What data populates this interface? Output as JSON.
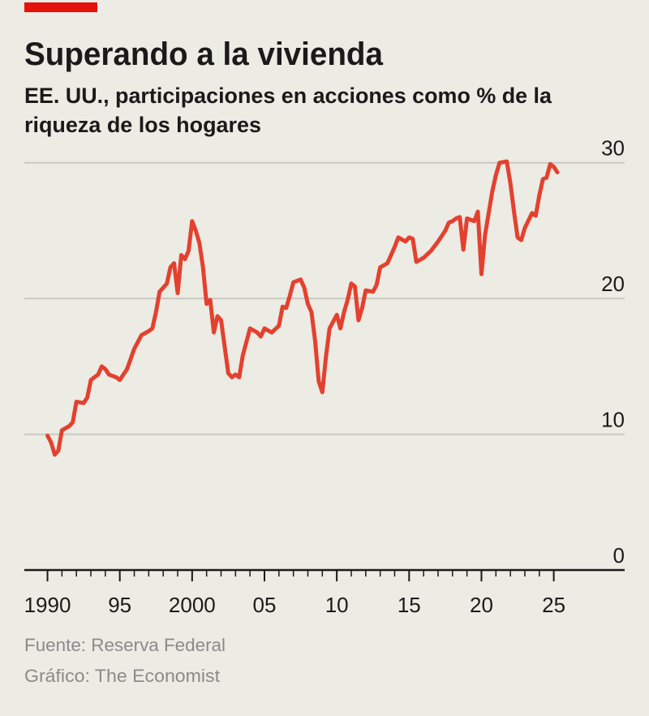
{
  "chart_data": {
    "type": "line",
    "title": "Superando a la vivienda",
    "subtitle": [
      "EE. UU., participaciones en acciones como % de la",
      "riqueza de los hogares"
    ],
    "source": "Fuente: Reserva Federal",
    "credit": "Gráfico: The Economist",
    "color": "#e3412f",
    "grid": true,
    "ylim": [
      0,
      31
    ],
    "yticks": [
      0,
      10,
      20,
      30
    ],
    "xlim": [
      1988.4,
      2029.9
    ],
    "xticks": [
      1990,
      {
        "value": 1995,
        "label": "95"
      },
      2000,
      {
        "value": 2005,
        "label": "05"
      },
      {
        "value": 2010,
        "label": "10"
      },
      {
        "value": 2015,
        "label": "15"
      },
      {
        "value": 2020,
        "label": "20"
      },
      {
        "value": 2025,
        "label": "25"
      }
    ],
    "xminorticks": [
      1990,
      1991,
      1992,
      1993,
      1994,
      1995,
      1996,
      1997,
      1998,
      1999,
      2000,
      2001,
      2002,
      2003,
      2004,
      2005,
      2006,
      2007,
      2008,
      2009,
      2010,
      2011,
      2012,
      2013,
      2014,
      2015,
      2016,
      2017,
      2018,
      2019,
      2020,
      2021,
      2022,
      2023,
      2024,
      2025
    ],
    "x": [
      1990.0,
      1990.25,
      1990.5,
      1990.75,
      1991.0,
      1991.5,
      1991.75,
      1992.0,
      1992.5,
      1992.75,
      1993.0,
      1993.5,
      1993.75,
      1994.0,
      1994.25,
      1994.75,
      1995.0,
      1995.5,
      1996.0,
      1996.5,
      1997.0,
      1997.25,
      1997.5,
      1997.75,
      1998.25,
      1998.5,
      1998.75,
      1999.0,
      1999.25,
      1999.5,
      1999.75,
      2000.0,
      2000.25,
      2000.5,
      2000.75,
      2001.0,
      2001.25,
      2001.5,
      2001.75,
      2002.0,
      2002.5,
      2002.75,
      2003.0,
      2003.25,
      2003.5,
      2004.0,
      2004.5,
      2004.75,
      2005.0,
      2005.5,
      2006.0,
      2006.25,
      2006.5,
      2006.75,
      2007.0,
      2007.5,
      2007.75,
      2008.0,
      2008.25,
      2008.5,
      2008.75,
      2009.0,
      2009.25,
      2009.5,
      2010.0,
      2010.25,
      2010.5,
      2010.75,
      2011.0,
      2011.25,
      2011.5,
      2011.75,
      2012.0,
      2012.5,
      2012.75,
      2013.0,
      2013.5,
      2014.0,
      2014.25,
      2014.75,
      2015.0,
      2015.25,
      2015.5,
      2016.0,
      2016.5,
      2017.0,
      2017.5,
      2017.75,
      2018.0,
      2018.25,
      2018.5,
      2018.75,
      2019.0,
      2019.5,
      2019.75,
      2020.0,
      2020.25,
      2020.5,
      2020.75,
      2021.0,
      2021.25,
      2021.75,
      2022.0,
      2022.25,
      2022.5,
      2022.75,
      2023.0,
      2023.5,
      2023.75,
      2024.0,
      2024.25,
      2024.5,
      2024.75,
      2025.0,
      2025.25
    ],
    "values": [
      9.9,
      9.4,
      8.5,
      8.8,
      10.3,
      10.6,
      10.9,
      12.4,
      12.3,
      12.7,
      14.0,
      14.4,
      15.0,
      14.8,
      14.4,
      14.2,
      14.0,
      14.8,
      16.3,
      17.3,
      17.6,
      17.8,
      19.0,
      20.5,
      21.1,
      22.3,
      22.6,
      20.4,
      23.2,
      22.9,
      23.5,
      25.7,
      25.0,
      24.1,
      22.3,
      19.6,
      19.9,
      17.5,
      18.7,
      18.4,
      14.5,
      14.2,
      14.4,
      14.2,
      15.8,
      17.8,
      17.5,
      17.2,
      17.8,
      17.5,
      18.0,
      19.4,
      19.3,
      20.2,
      21.2,
      21.4,
      20.8,
      19.6,
      19.0,
      16.9,
      13.9,
      13.1,
      15.7,
      17.8,
      18.8,
      17.8,
      19.0,
      19.9,
      21.1,
      20.9,
      18.4,
      19.3,
      20.6,
      20.5,
      21.0,
      22.3,
      22.6,
      23.8,
      24.5,
      24.2,
      24.5,
      24.4,
      22.7,
      23.0,
      23.5,
      24.2,
      25.0,
      25.6,
      25.7,
      25.9,
      26.0,
      23.6,
      25.9,
      25.7,
      26.4,
      21.8,
      24.7,
      26.3,
      27.9,
      29.1,
      30.0,
      30.1,
      28.5,
      26.4,
      24.5,
      24.3,
      25.2,
      26.3,
      26.1,
      27.6,
      28.8,
      28.9,
      29.9,
      29.7,
      29.3
    ]
  }
}
